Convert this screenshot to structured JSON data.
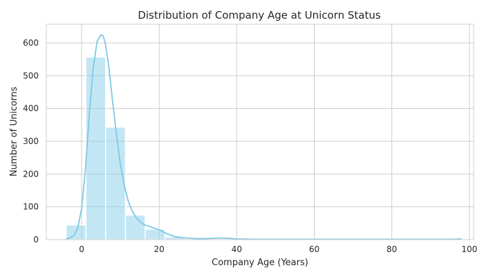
{
  "chart_data": {
    "type": "bar",
    "title": "Distribution of Company Age at Unicorn Status",
    "xlabel": "Company Age (Years)",
    "ylabel": "Number of Unicorns",
    "xlim": [
      -9.1,
      101.1
    ],
    "ylim": [
      0,
      657
    ],
    "xticks": [
      0,
      20,
      40,
      60,
      80,
      100
    ],
    "yticks": [
      0,
      100,
      200,
      300,
      400,
      500,
      600
    ],
    "grid": true,
    "bar_color": "#87ceeb",
    "kde_color": "#7ec8e3",
    "bins": [
      {
        "x0": -4.0,
        "x1": 1.1,
        "value": 45
      },
      {
        "x0": 1.1,
        "x1": 6.2,
        "value": 557
      },
      {
        "x0": 6.2,
        "x1": 11.3,
        "value": 343
      },
      {
        "x0": 11.3,
        "x1": 16.4,
        "value": 75
      },
      {
        "x0": 16.4,
        "x1": 21.5,
        "value": 32
      },
      {
        "x0": 21.5,
        "x1": 26.6,
        "value": 8
      },
      {
        "x0": 26.6,
        "x1": 31.7,
        "value": 2
      },
      {
        "x0": 31.7,
        "x1": 36.8,
        "value": 2
      },
      {
        "x0": 36.8,
        "x1": 41.9,
        "value": 3
      },
      {
        "x0": 41.9,
        "x1": 47.0,
        "value": 1
      },
      {
        "x0": 47.0,
        "x1": 52.1,
        "value": 0
      },
      {
        "x0": 52.1,
        "x1": 57.2,
        "value": 0
      },
      {
        "x0": 57.2,
        "x1": 62.3,
        "value": 0
      },
      {
        "x0": 62.3,
        "x1": 67.4,
        "value": 0
      },
      {
        "x0": 67.4,
        "x1": 72.5,
        "value": 0
      },
      {
        "x0": 72.5,
        "x1": 77.6,
        "value": 0
      },
      {
        "x0": 77.6,
        "x1": 82.7,
        "value": 0
      },
      {
        "x0": 82.7,
        "x1": 87.8,
        "value": 0
      },
      {
        "x0": 87.8,
        "x1": 92.9,
        "value": 0
      },
      {
        "x0": 92.9,
        "x1": 98.0,
        "value": 1
      }
    ],
    "kde": {
      "x": [
        -4,
        -3,
        -2,
        -1,
        0,
        1,
        2,
        3,
        4,
        5,
        5.5,
        6,
        7,
        8,
        9,
        10,
        11,
        12,
        13,
        14,
        15,
        16,
        18,
        20,
        22,
        24,
        26,
        28,
        30,
        32,
        34,
        36,
        38,
        40,
        45,
        50,
        60,
        70,
        80,
        90,
        95,
        98
      ],
      "y": [
        2,
        5,
        12,
        35,
        95,
        215,
        385,
        525,
        605,
        625,
        622,
        605,
        530,
        420,
        320,
        230,
        165,
        118,
        88,
        68,
        55,
        46,
        38,
        30,
        18,
        9,
        6,
        4,
        3,
        3,
        4,
        5,
        4,
        2,
        1,
        1,
        1,
        1,
        1,
        1,
        1,
        2
      ]
    }
  }
}
